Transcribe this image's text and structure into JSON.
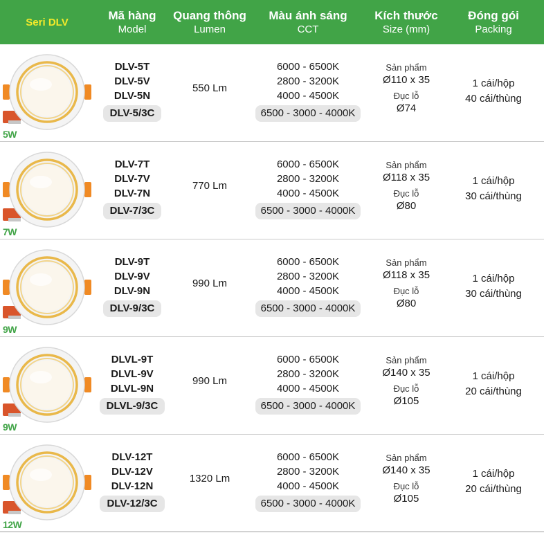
{
  "header": {
    "series": "Seri DLV",
    "columns": [
      {
        "title": "Mã hàng",
        "sub": "Model"
      },
      {
        "title": "Quang thông",
        "sub": "Lumen"
      },
      {
        "title": "Màu ánh sáng",
        "sub": "CCT"
      },
      {
        "title": "Kích thước",
        "sub": "Size (mm)"
      },
      {
        "title": "Đóng gói",
        "sub": "Packing"
      }
    ]
  },
  "labels": {
    "product": "Sản phẩm",
    "hole": "Đục lỗ"
  },
  "rows": [
    {
      "watt": "5W",
      "models": [
        "DLV-5T",
        "DLV-5V",
        "DLV-5N"
      ],
      "model_combo": "DLV-5/3C",
      "lumen": "550 Lm",
      "cct": [
        "6000 - 6500K",
        "2800 - 3200K",
        "4000 - 4500K"
      ],
      "cct_combo": "6500 - 3000 - 4000K",
      "size_product": "Ø110 x 35",
      "size_hole": "Ø74",
      "pack": [
        "1 cái/hộp",
        "40 cái/thùng"
      ]
    },
    {
      "watt": "7W",
      "models": [
        "DLV-7T",
        "DLV-7V",
        "DLV-7N"
      ],
      "model_combo": "DLV-7/3C",
      "lumen": "770 Lm",
      "cct": [
        "6000 - 6500K",
        "2800 - 3200K",
        "4000 - 4500K"
      ],
      "cct_combo": "6500 - 3000 - 4000K",
      "size_product": "Ø118 x 35",
      "size_hole": "Ø80",
      "pack": [
        "1 cái/hộp",
        "30 cái/thùng"
      ]
    },
    {
      "watt": "9W",
      "models": [
        "DLV-9T",
        "DLV-9V",
        "DLV-9N"
      ],
      "model_combo": "DLV-9/3C",
      "lumen": "990 Lm",
      "cct": [
        "6000 - 6500K",
        "2800 - 3200K",
        "4000 - 4500K"
      ],
      "cct_combo": "6500 - 3000 - 4000K",
      "size_product": "Ø118 x 35",
      "size_hole": "Ø80",
      "pack": [
        "1 cái/hộp",
        "30 cái/thùng"
      ]
    },
    {
      "watt": "9W",
      "models": [
        "DLVL-9T",
        "DLVL-9V",
        "DLVL-9N"
      ],
      "model_combo": "DLVL-9/3C",
      "lumen": "990 Lm",
      "cct": [
        "6000 - 6500K",
        "2800 - 3200K",
        "4000 - 4500K"
      ],
      "cct_combo": "6500 - 3000 - 4000K",
      "size_product": "Ø140 x 35",
      "size_hole": "Ø105",
      "pack": [
        "1 cái/hộp",
        "20 cái/thùng"
      ]
    },
    {
      "watt": "12W",
      "models": [
        "DLV-12T",
        "DLV-12V",
        "DLV-12N"
      ],
      "model_combo": "DLV-12/3C",
      "lumen": "1320 Lm",
      "cct": [
        "6000 - 6500K",
        "2800 - 3200K",
        "4000 - 4500K"
      ],
      "cct_combo": "6500 - 3000 - 4000K",
      "size_product": "Ø140 x 35",
      "size_hole": "Ø105",
      "pack": [
        "1 cái/hộp",
        "20 cái/thùng"
      ]
    }
  ],
  "colors": {
    "header_bg": "#41a447",
    "series_text": "#f4ea2a",
    "watt_text": "#41a447",
    "gold_ring": "#e9b84a",
    "pill_bg": "#e6e6e6"
  }
}
